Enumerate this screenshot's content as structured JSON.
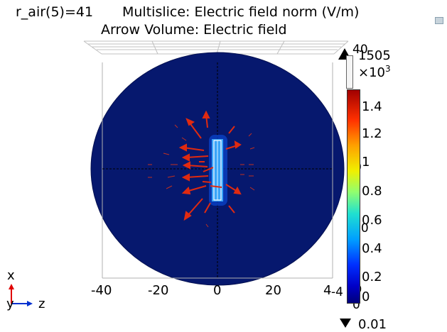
{
  "title": {
    "param": "r_air(5)=41",
    "multislice": "Multislice: Electric field norm (V/m)",
    "arrow": "Arrow Volume: Electric field"
  },
  "axis_ticks_x": [
    "-40",
    "-20",
    "0",
    "20",
    "4"
  ],
  "overlap_labels": {
    "top_right": "40",
    "right_mid_a": "0",
    "right_mid_b": "20",
    "bottom_right_a": "-4",
    "bottom_right_b": "40",
    "bottom_right_c": "0",
    "x_axis_end": "0"
  },
  "colorbar": {
    "max_label": "1505",
    "exponent": "×10",
    "exponent_power": "3",
    "min_label": "0.01",
    "ticks": [
      "1.4",
      "1.2",
      "1",
      "0.8",
      "0.6",
      "0.4",
      "0.2",
      "0"
    ],
    "high_color": "#a00000",
    "low_color": "#00007a"
  },
  "triad": {
    "x_label": "x",
    "y_label": "y",
    "z_label": "z",
    "x_color": "#e00000",
    "z_color": "#0030d0"
  },
  "colors": {
    "disk": "#06186e",
    "arrow": "#e02a10"
  }
}
